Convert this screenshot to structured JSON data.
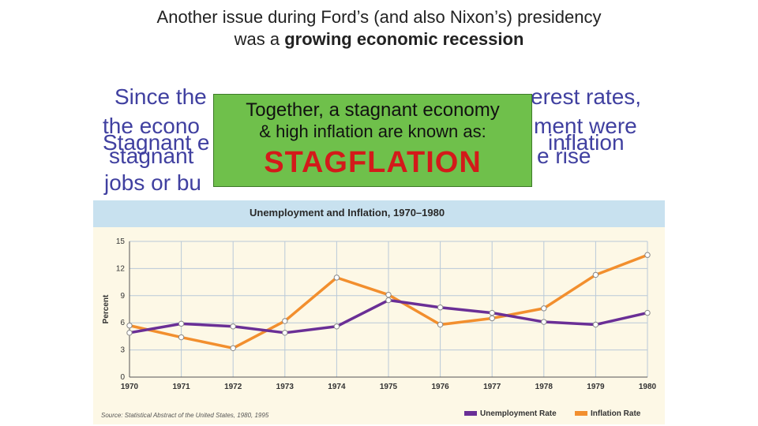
{
  "slide": {
    "title_line1": "Another issue during Ford’s (and also Nixon’s) presidency",
    "title_line2_prefix": "was a ",
    "title_line2_bold": "growing economic recession",
    "bg_text": {
      "row1_left": "Since the ",
      "row1_right": "erest rates,",
      "row2_left": "the econo",
      "row2_right": "ment were",
      "row3_left": "Stagnant e",
      "row3_right": "inflation",
      "row4_left": "stagnant ",
      "row4_right": "e rise",
      "row5_left": "jobs or bu"
    },
    "callout": {
      "line1": "Together, a stagnant economy",
      "line2": "& high inflation are known as:",
      "term": "STAGFLATION"
    }
  },
  "colors": {
    "unemployment": "#6a2f96",
    "inflation": "#f28f2e",
    "callout_bg": "#6fc04b",
    "term": "#d31a1a",
    "header_bg": "#c8e1ef",
    "plot_bg": "#fdf8e6"
  },
  "chart_data": {
    "type": "line",
    "title": "Unemployment and Inflation, 1970–1980",
    "ylabel": "Percent",
    "xlabel": "",
    "x": [
      "1970",
      "1971",
      "1972",
      "1973",
      "1974",
      "1975",
      "1976",
      "1977",
      "1978",
      "1979",
      "1980"
    ],
    "y_ticks": [
      "0",
      "3",
      "6",
      "9",
      "12",
      "15"
    ],
    "ylim": [
      0,
      15
    ],
    "grid": true,
    "legend_position": "bottom-right",
    "series": [
      {
        "name": "Unemployment Rate",
        "color": "#6a2f96",
        "values": [
          4.9,
          5.9,
          5.6,
          4.9,
          5.6,
          8.5,
          7.7,
          7.1,
          6.1,
          5.8,
          7.1
        ]
      },
      {
        "name": "Inflation Rate",
        "color": "#f28f2e",
        "values": [
          5.7,
          4.4,
          3.2,
          6.2,
          11.0,
          9.1,
          5.8,
          6.5,
          7.6,
          11.3,
          13.5
        ]
      }
    ],
    "source": "Source: Statistical Abstract of the United States, 1980, 1995"
  }
}
